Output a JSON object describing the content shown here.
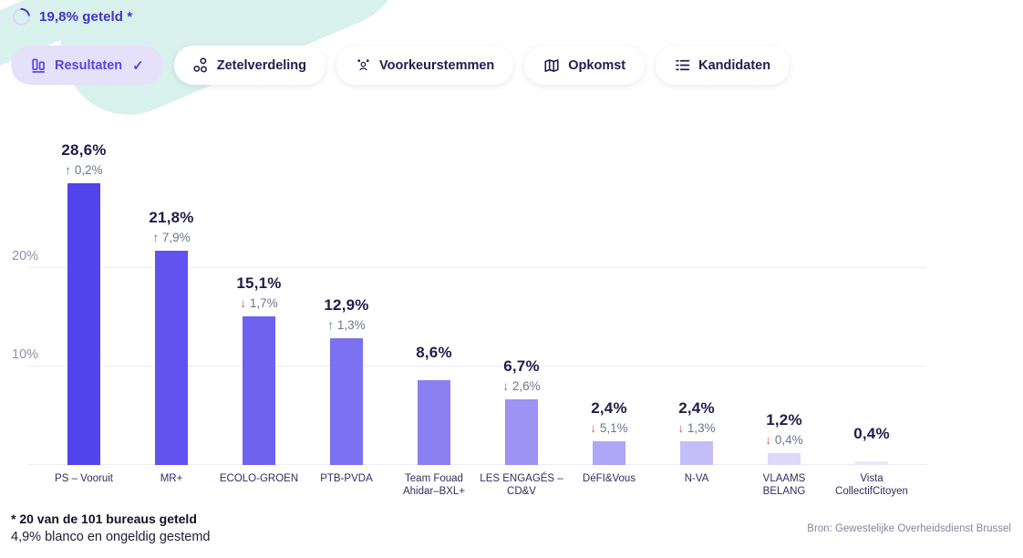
{
  "header": {
    "progress_label": "19,8% geteld *",
    "accent_color": "#4133c4"
  },
  "tabs": [
    {
      "label": "Resultaten",
      "icon": "bar-chart-icon",
      "selected": true,
      "checkmark": "✓"
    },
    {
      "label": "Zetelverdeling",
      "icon": "seats-circles-icon",
      "selected": false
    },
    {
      "label": "Voorkeurstemmen",
      "icon": "person-stars-icon",
      "selected": false
    },
    {
      "label": "Opkomst",
      "icon": "map-icon",
      "selected": false
    },
    {
      "label": "Kandidaten",
      "icon": "list-icon",
      "selected": false
    }
  ],
  "chart_data": {
    "type": "bar",
    "title": "",
    "xlabel": "",
    "ylabel": "",
    "categories": [
      "PS – Vooruit",
      "MR+",
      "ECOLO-GROEN",
      "PTB-PVDA",
      "Team Fouad Ahidar–BXL+",
      "LES ENGAGÉS – CD&V",
      "DéFI&Vous",
      "N-VA",
      "VLAAMS BELANG",
      "Vista CollectifCitoyen"
    ],
    "values": [
      28.6,
      21.8,
      15.1,
      12.9,
      8.6,
      6.7,
      2.4,
      2.4,
      1.2,
      0.4
    ],
    "value_labels": [
      "28,6%",
      "21,8%",
      "15,1%",
      "12,9%",
      "8,6%",
      "6,7%",
      "2,4%",
      "2,4%",
      "1,2%",
      "0,4%"
    ],
    "changes": [
      {
        "direction": "up",
        "label": "0,2%"
      },
      {
        "direction": "up",
        "label": "7,9%"
      },
      {
        "direction": "down",
        "label": "1,7%"
      },
      {
        "direction": "up",
        "label": "1,3%"
      },
      null,
      {
        "direction": "down",
        "label": "2,6%"
      },
      {
        "direction": "down",
        "label": "5,1%"
      },
      {
        "direction": "down",
        "label": "1,3%"
      },
      {
        "direction": "down",
        "label": "0,4%"
      },
      null
    ],
    "bar_colors": [
      "#5244ec",
      "#6053ee",
      "#6e62ef",
      "#7c71f0",
      "#8a80f2",
      "#9c93f4",
      "#aea6f6",
      "#c4bef8",
      "#dcd9fb",
      "#e9e7fd"
    ],
    "up_color": "#27a658",
    "down_color": "#e14b4b",
    "up_glyph": "↑",
    "down_glyph": "↓",
    "yticks": [
      {
        "value": 10,
        "label": "10%"
      },
      {
        "value": 20,
        "label": "20%"
      }
    ],
    "ylim": [
      0,
      30
    ],
    "grid": "horizontal",
    "legend": "none"
  },
  "footnote": {
    "line1": "* 20 van de 101 bureaus geteld",
    "line2": "4,9% blanco en ongeldig gestemd"
  },
  "source": "Bron: Gewestelijke Overheidsdienst Brussel"
}
